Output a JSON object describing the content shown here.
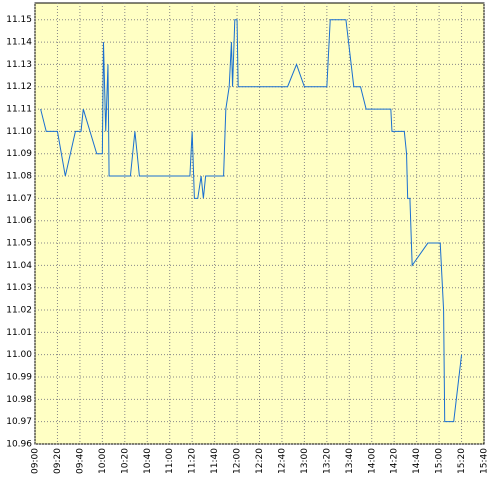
{
  "chart_data": {
    "type": "line",
    "x": [
      "09:05",
      "09:10",
      "09:20",
      "09:27",
      "09:36",
      "09:41",
      "09:43",
      "09:55",
      "10:00",
      "10:01",
      "10:03",
      "10:05",
      "10:06",
      "10:25",
      "10:29",
      "10:33",
      "11:18",
      "11:20",
      "11:22",
      "11:25",
      "11:28",
      "11:30",
      "11:32",
      "11:48",
      "11:50",
      "11:53",
      "11:55",
      "11:56",
      "11:58",
      "12:00",
      "12:01",
      "12:45",
      "12:53",
      "13:00",
      "13:20",
      "13:23",
      "13:37",
      "13:44",
      "13:50",
      "13:55",
      "14:17",
      "14:18",
      "14:29",
      "14:31",
      "14:32",
      "14:34",
      "14:36",
      "14:50",
      "15:01",
      "15:04",
      "15:05",
      "15:13",
      "15:20"
    ],
    "values": [
      11.11,
      11.1,
      11.1,
      11.08,
      11.1,
      11.1,
      11.11,
      11.09,
      11.09,
      11.14,
      11.1,
      11.13,
      11.08,
      11.08,
      11.1,
      11.08,
      11.08,
      11.1,
      11.07,
      11.07,
      11.08,
      11.07,
      11.08,
      11.08,
      11.11,
      11.12,
      11.14,
      11.12,
      11.15,
      11.15,
      11.12,
      11.12,
      11.13,
      11.12,
      11.12,
      11.15,
      11.15,
      11.12,
      11.12,
      11.11,
      11.11,
      11.1,
      11.1,
      11.09,
      11.07,
      11.07,
      11.04,
      11.05,
      11.05,
      11.02,
      10.97,
      10.97,
      11.0
    ],
    "color": "#1a6fd0",
    "xlim": [
      "09:00",
      "15:40"
    ],
    "xticks": [
      "09:00",
      "09:20",
      "09:40",
      "10:00",
      "10:20",
      "10:40",
      "11:00",
      "11:20",
      "11:40",
      "12:00",
      "12:20",
      "12:40",
      "13:00",
      "13:20",
      "13:40",
      "14:00",
      "14:20",
      "14:40",
      "15:00",
      "15:20",
      "15:40"
    ],
    "ylim": [
      10.96,
      11.1575
    ],
    "yticks": [
      10.96,
      10.97,
      10.98,
      10.99,
      {
        "value": 11.0,
        "label": "11.00"
      },
      11.01,
      11.02,
      11.03,
      11.04,
      11.05,
      11.06,
      11.07,
      11.08,
      11.09,
      {
        "value": 11.1,
        "label": "11.10"
      },
      11.11,
      11.12,
      11.13,
      11.14,
      11.15
    ],
    "grid": true
  }
}
